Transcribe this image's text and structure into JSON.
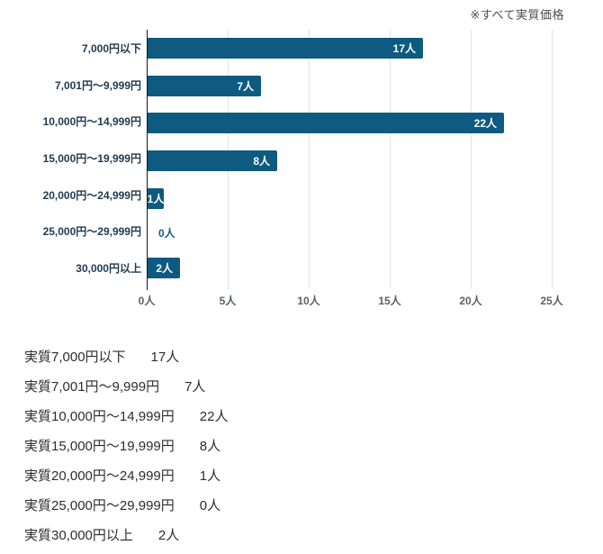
{
  "note": "※すべて実質価格",
  "colors": {
    "bar": "#0e5a80",
    "category_label": "#1f3a50",
    "tick_label": "#5b6168",
    "value_in_bar": "#ffffff",
    "value_outside_bar": "#0f6390",
    "grid": "#e2e2e2",
    "axis": "#1a1a1a",
    "note_text": "#4d4d4d",
    "list_text": "#2d2d2d"
  },
  "chart_data": {
    "type": "bar",
    "orientation": "horizontal",
    "title": "",
    "xlabel": "",
    "ylabel": "",
    "unit": "人",
    "categories": [
      "7,000円以下",
      "7,001円〜9,999円",
      "10,000円〜14,999円",
      "15,000円〜19,999円",
      "20,000円〜24,999円",
      "25,000円〜29,999円",
      "30,000円以上"
    ],
    "values": [
      17,
      7,
      22,
      8,
      1,
      0,
      2
    ],
    "value_labels": [
      "17人",
      "7人",
      "22人",
      "8人",
      "1人",
      "0人",
      "2人"
    ],
    "x_ticks": [
      "0人",
      "5人",
      "10人",
      "15人",
      "20人",
      "25人"
    ],
    "x_tick_values": [
      0,
      5,
      10,
      15,
      20,
      25
    ],
    "xlim": [
      0,
      25
    ],
    "grid": true,
    "legend": "none"
  },
  "summary_list": [
    {
      "label": "実質7,000円以下",
      "count": "17人"
    },
    {
      "label": "実質7,001円〜9,999円",
      "count": "7人"
    },
    {
      "label": "実質10,000円〜14,999円",
      "count": "22人"
    },
    {
      "label": "実質15,000円〜19,999円",
      "count": "8人"
    },
    {
      "label": "実質20,000円〜24,999円",
      "count": "1人"
    },
    {
      "label": "実質25,000円〜29,999円",
      "count": "0人"
    },
    {
      "label": "実質30,000円以上",
      "count": "2人"
    }
  ]
}
